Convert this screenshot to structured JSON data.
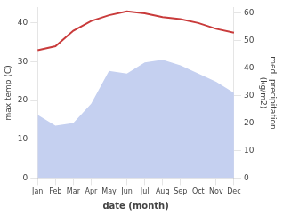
{
  "chart_data": {
    "type": "line",
    "xlabel": "date (month)",
    "ylabel": "max temp (C)",
    "y2label": "med. precipitation\n(kg/m2)",
    "categories": [
      "Jan",
      "Feb",
      "Mar",
      "Apr",
      "May",
      "Jun",
      "Jul",
      "Aug",
      "Sep",
      "Oct",
      "Nov",
      "Dec"
    ],
    "series": [
      {
        "type": "area",
        "axis": "y2",
        "color": "#c5d0f0",
        "values": [
          23,
          19,
          20,
          27,
          39,
          38,
          42,
          43,
          41,
          38,
          35,
          31
        ]
      },
      {
        "type": "line",
        "axis": "y",
        "color": "#c93b3b",
        "values": [
          33,
          34,
          38,
          40.5,
          42,
          43,
          42.5,
          41.5,
          41,
          40,
          38.5,
          37.5
        ]
      }
    ],
    "ylim": [
      0,
      44
    ],
    "yticks": [
      0,
      10,
      20,
      30,
      40
    ],
    "y2lim": [
      0,
      62
    ],
    "y2ticks": [
      0,
      10,
      20,
      30,
      40,
      50,
      60
    ],
    "grid": false
  }
}
